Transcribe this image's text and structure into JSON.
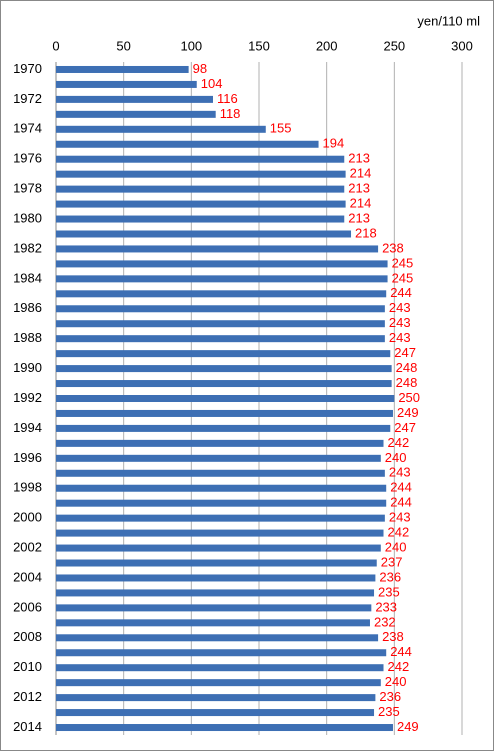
{
  "chart_data": {
    "type": "hbar",
    "xlabel": "yen/110 ml",
    "categories": [
      "1970",
      null,
      "1972",
      null,
      "1974",
      null,
      "1976",
      null,
      "1978",
      null,
      "1980",
      null,
      "1982",
      null,
      "1984",
      null,
      "1986",
      null,
      "1988",
      null,
      "1990",
      null,
      "1992",
      null,
      "1994",
      null,
      "1996",
      null,
      "1998",
      null,
      "2000",
      null,
      "2002",
      null,
      "2004",
      null,
      "2006",
      null,
      "2008",
      null,
      "2010",
      null,
      "2012",
      null,
      "2014"
    ],
    "values": [
      98,
      104,
      116,
      118,
      155,
      194,
      213,
      214,
      213,
      214,
      213,
      218,
      238,
      245,
      245,
      244,
      243,
      243,
      243,
      247,
      248,
      248,
      250,
      249,
      247,
      242,
      240,
      243,
      244,
      244,
      243,
      242,
      240,
      237,
      236,
      235,
      233,
      232,
      238,
      244,
      242,
      240,
      236,
      235,
      249
    ],
    "color": "#3d6fb4",
    "label_color": "#ff0000",
    "xlim": [
      0,
      300
    ],
    "xticks": [
      0,
      50,
      100,
      150,
      200,
      250,
      300
    ],
    "grid": true
  }
}
